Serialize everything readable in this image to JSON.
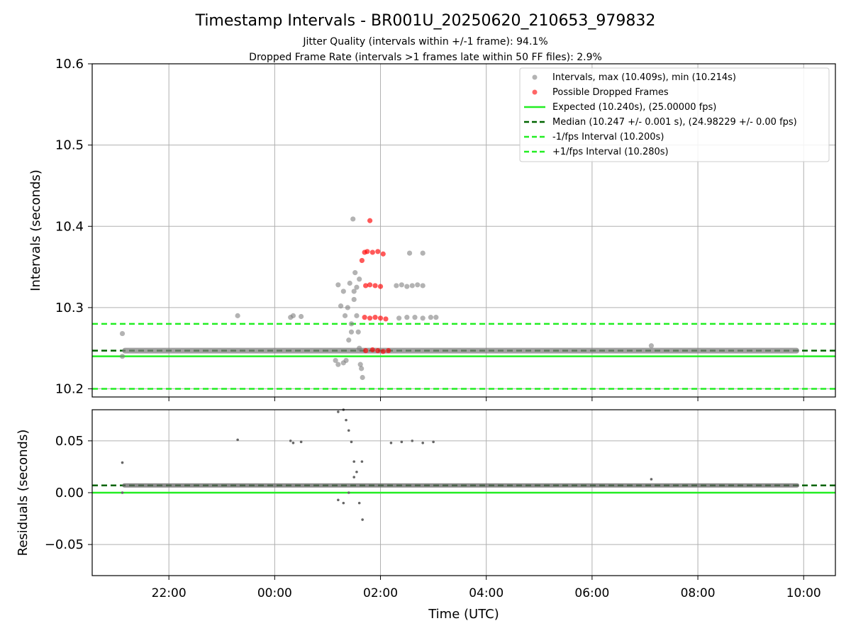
{
  "figure": {
    "title": "Timestamp Intervals - BR001U_20250620_210653_979832",
    "subtitle_1": "Jitter Quality (intervals within +/-1 frame): 94.1%",
    "subtitle_2": "Dropped Frame Rate (intervals >1 frames late within 50 FF files): 2.9%"
  },
  "colors": {
    "points": "#808080",
    "dropped": "#ff0000",
    "expected": "#22ee22",
    "median": "#006400",
    "interval_bounds": "#22ee22",
    "residual_points": "#666666",
    "grid": "#b0b0b0"
  },
  "chart_data": [
    {
      "type": "scatter",
      "panel": "top",
      "ylabel": "Intervals (seconds)",
      "xlabel": "",
      "ylim": [
        10.19,
        10.6
      ],
      "xlim_hours": [
        -3.45,
        10.6
      ],
      "yticks": [
        "10.2",
        "10.3",
        "10.4",
        "10.5",
        "10.6"
      ],
      "ytick_values": [
        10.2,
        10.3,
        10.4,
        10.5,
        10.6
      ],
      "grid": true,
      "legend_position": "top-right",
      "legend": [
        {
          "label": "Intervals, max (10.409s), min (10.214s)",
          "kind": "gray-dot"
        },
        {
          "label": "Possible Dropped Frames",
          "kind": "red-dot"
        },
        {
          "label": "Expected (10.240s), (25.00000 fps)",
          "kind": "solid-green"
        },
        {
          "label": "Median (10.247 +/- 0.001 s), (24.98229 +/- 0.00 fps)",
          "kind": "dashed-darkgreen"
        },
        {
          "label": "-1/fps Interval (10.200s)",
          "kind": "dashed-green"
        },
        {
          "label": "+1/fps Interval (10.280s)",
          "kind": "dashed-green"
        }
      ],
      "lines": {
        "expected": 10.24,
        "median": 10.247,
        "lower": 10.2,
        "upper": 10.28
      },
      "series": [
        {
          "name": "Intervals, max (10.409s), min (10.214s)",
          "baseline": {
            "x_start": "21:07",
            "x_end": "09:55",
            "y": 10.247
          },
          "points": [
            [
              -2.88,
              10.268
            ],
            [
              -2.88,
              10.24
            ],
            [
              -0.7,
              10.29
            ],
            [
              0.3,
              10.288
            ],
            [
              0.35,
              10.29
            ],
            [
              0.5,
              10.289
            ],
            [
              1.2,
              10.328
            ],
            [
              1.25,
              10.302
            ],
            [
              1.3,
              10.32
            ],
            [
              1.33,
              10.29
            ],
            [
              1.38,
              10.3
            ],
            [
              1.42,
              10.33
            ],
            [
              1.45,
              10.27
            ],
            [
              1.48,
              10.409
            ],
            [
              1.5,
              10.32
            ],
            [
              1.52,
              10.343
            ],
            [
              1.55,
              10.29
            ],
            [
              1.58,
              10.27
            ],
            [
              1.6,
              10.25
            ],
            [
              1.62,
              10.23
            ],
            [
              1.64,
              10.225
            ],
            [
              1.66,
              10.214
            ],
            [
              1.35,
              10.235
            ],
            [
              1.3,
              10.232
            ],
            [
              1.2,
              10.23
            ],
            [
              1.15,
              10.235
            ],
            [
              1.4,
              10.26
            ],
            [
              1.45,
              10.28
            ],
            [
              1.5,
              10.31
            ],
            [
              1.55,
              10.325
            ],
            [
              1.6,
              10.335
            ],
            [
              2.3,
              10.327
            ],
            [
              2.4,
              10.328
            ],
            [
              2.5,
              10.326
            ],
            [
              2.6,
              10.327
            ],
            [
              2.7,
              10.328
            ],
            [
              2.8,
              10.327
            ],
            [
              2.35,
              10.287
            ],
            [
              2.5,
              10.288
            ],
            [
              2.65,
              10.288
            ],
            [
              2.8,
              10.287
            ],
            [
              2.95,
              10.288
            ],
            [
              3.05,
              10.288
            ],
            [
              2.55,
              10.367
            ],
            [
              2.8,
              10.367
            ],
            [
              7.12,
              10.253
            ]
          ]
        },
        {
          "name": "Possible Dropped Frames",
          "points": [
            [
              1.8,
              10.407
            ],
            [
              1.7,
              10.368
            ],
            [
              1.75,
              10.369
            ],
            [
              1.85,
              10.368
            ],
            [
              1.95,
              10.369
            ],
            [
              2.05,
              10.366
            ],
            [
              1.65,
              10.358
            ],
            [
              1.72,
              10.327
            ],
            [
              1.8,
              10.328
            ],
            [
              1.9,
              10.327
            ],
            [
              2.0,
              10.326
            ],
            [
              1.7,
              10.288
            ],
            [
              1.8,
              10.287
            ],
            [
              1.9,
              10.288
            ],
            [
              2.0,
              10.287
            ],
            [
              2.1,
              10.286
            ],
            [
              1.72,
              10.247
            ],
            [
              1.85,
              10.248
            ],
            [
              1.95,
              10.247
            ],
            [
              2.05,
              10.246
            ],
            [
              2.15,
              10.247
            ]
          ]
        }
      ]
    },
    {
      "type": "scatter",
      "panel": "bottom",
      "ylabel": "Residuals (seconds)",
      "xlabel": "Time (UTC)",
      "ylim": [
        -0.08,
        0.08
      ],
      "xlim_hours": [
        -3.45,
        10.6
      ],
      "yticks": [
        "−0.05",
        "0.00",
        "0.05"
      ],
      "ytick_values": [
        -0.05,
        0.0,
        0.05
      ],
      "xticks": [
        "22:00",
        "00:00",
        "02:00",
        "04:00",
        "06:00",
        "08:00",
        "10:00"
      ],
      "xtick_values": [
        -2,
        0,
        2,
        4,
        6,
        8,
        10
      ],
      "grid": true,
      "lines": {
        "zero": 0.0,
        "median": 0.007
      },
      "series": [
        {
          "name": "Residuals",
          "baseline": {
            "x_start": "21:07",
            "x_end": "09:55",
            "y": 0.007
          },
          "points": [
            [
              -2.88,
              0.029
            ],
            [
              -2.88,
              0.0
            ],
            [
              -0.7,
              0.051
            ],
            [
              0.3,
              0.05
            ],
            [
              0.35,
              0.048
            ],
            [
              0.5,
              0.049
            ],
            [
              1.2,
              0.078
            ],
            [
              1.3,
              0.08
            ],
            [
              1.35,
              0.07
            ],
            [
              1.4,
              0.06
            ],
            [
              1.45,
              0.049
            ],
            [
              1.5,
              0.03
            ],
            [
              1.55,
              0.02
            ],
            [
              1.6,
              -0.01
            ],
            [
              1.66,
              -0.026
            ],
            [
              1.2,
              -0.007
            ],
            [
              1.3,
              -0.01
            ],
            [
              1.4,
              0.0
            ],
            [
              1.5,
              0.015
            ],
            [
              1.65,
              0.03
            ],
            [
              2.2,
              0.048
            ],
            [
              2.4,
              0.049
            ],
            [
              2.6,
              0.05
            ],
            [
              2.8,
              0.048
            ],
            [
              3.0,
              0.049
            ],
            [
              7.12,
              0.013
            ]
          ]
        }
      ]
    }
  ]
}
